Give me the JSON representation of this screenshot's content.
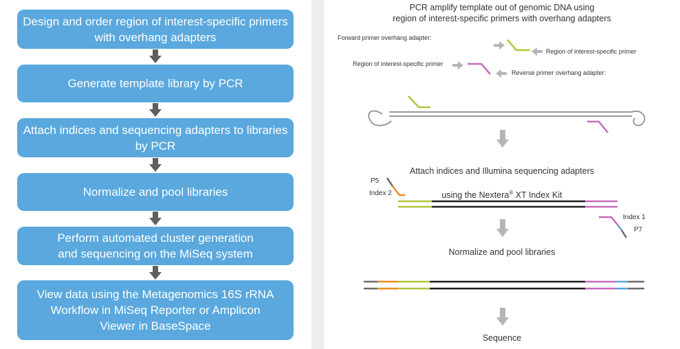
{
  "workflow_steps": [
    "Design and order region of interest-specific primers\nwith overhang adapters",
    "Generate template library by PCR",
    "Attach indices and sequencing adapters to libraries\nby PCR",
    "Normalize and pool libraries",
    "Perform automated cluster generation\nand sequencing on the MiSeq system",
    "View data using the Metagenomics 16S rRNA\nWorkflow in MiSeq Reporter or Amplicon\nViewer in BaseSpace"
  ],
  "diagram": {
    "pcr_heading": "PCR amplify template out of genomic DNA using\nregion of interest-specific primers with overhang adapters",
    "forward_adapter_label": "Forward primer overhang adapter:",
    "roi_primer_label_right": "Region of interest-specific primer",
    "roi_primer_label_left": "Region of interest-specific primer",
    "reverse_adapter_label": "Reverse primer overhang adapter:",
    "attach_heading_line1": "Attach indices and Illumina sequencing adapters",
    "attach_heading_line2_pre": "using the Nextera",
    "attach_heading_registered": "®",
    "attach_heading_line2_post": " XT Index Kit",
    "p5_label": "P5",
    "index2_label": "Index 2",
    "index1_label": "Index 1",
    "p7_label": "P7",
    "normalize_heading": "Normalize and pool libraries",
    "sequence_heading": "Sequence"
  },
  "colors": {
    "step_box": "#5aa8dd",
    "arrow_dark": "#5f5f5f",
    "arrow_light": "#b5b5b5",
    "green_adapter": "#b3c43a",
    "pink_adapter": "#c86ab9",
    "orange_index": "#f08a1e",
    "blue_index": "#52a7d9",
    "dna_black": "#1d1d1d",
    "gray_end": "#6b6b6b"
  }
}
